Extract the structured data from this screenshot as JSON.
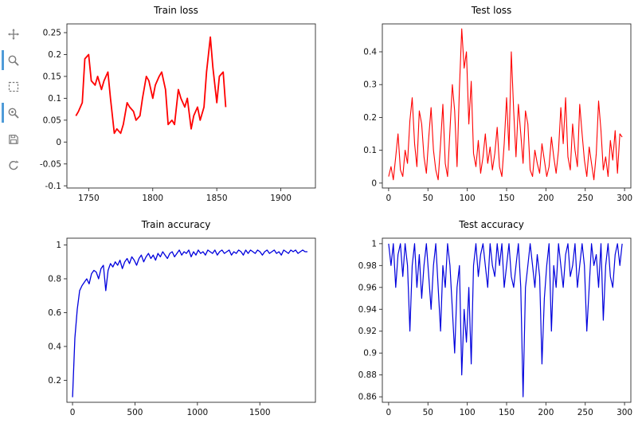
{
  "page": {
    "background": "#ffffff"
  },
  "toolbar": {
    "items": [
      {
        "name": "pan",
        "active": false
      },
      {
        "name": "zoom",
        "active": true
      },
      {
        "name": "box-zoom",
        "active": false
      },
      {
        "name": "wheel-zoom",
        "active": true
      },
      {
        "name": "save",
        "active": false
      },
      {
        "name": "reset",
        "active": false
      }
    ],
    "active_color": "#4f9bd8",
    "icon_color": "#555555"
  },
  "chart_data": [
    {
      "type": "line",
      "title": "Train loss",
      "color": "#ff0000",
      "line_width": 1.8,
      "xlim": [
        1733,
        1927
      ],
      "ylim": [
        -0.105,
        0.27
      ],
      "xticks": [
        1750,
        1800,
        1850,
        1900
      ],
      "yticks": [
        -0.1,
        -0.05,
        0,
        0.05,
        0.1,
        0.15,
        0.2,
        0.25
      ],
      "x": [
        1740,
        1742,
        1745,
        1747,
        1750,
        1752,
        1755,
        1757,
        1760,
        1762,
        1765,
        1767,
        1770,
        1772,
        1775,
        1777,
        1780,
        1782,
        1785,
        1787,
        1790,
        1792,
        1795,
        1797,
        1800,
        1802,
        1805,
        1807,
        1810,
        1812,
        1815,
        1817,
        1820,
        1822,
        1825,
        1827,
        1830,
        1832,
        1835,
        1837,
        1840,
        1842,
        1845,
        1847,
        1850,
        1852,
        1855,
        1857
      ],
      "y": [
        0.06,
        0.07,
        0.09,
        0.19,
        0.2,
        0.14,
        0.13,
        0.15,
        0.12,
        0.14,
        0.16,
        0.1,
        0.02,
        0.03,
        0.02,
        0.04,
        0.09,
        0.08,
        0.07,
        0.05,
        0.06,
        0.1,
        0.15,
        0.14,
        0.1,
        0.13,
        0.15,
        0.16,
        0.12,
        0.04,
        0.05,
        0.04,
        0.12,
        0.1,
        0.08,
        0.1,
        0.03,
        0.06,
        0.08,
        0.05,
        0.08,
        0.16,
        0.24,
        0.17,
        0.09,
        0.15,
        0.16,
        0.08
      ]
    },
    {
      "type": "line",
      "title": "Test loss",
      "color": "#ff0000",
      "line_width": 1.1,
      "xlim": [
        -8,
        308
      ],
      "ylim": [
        -0.015,
        0.485
      ],
      "xticks": [
        0,
        50,
        100,
        150,
        200,
        250,
        300
      ],
      "yticks": [
        0,
        0.1,
        0.2,
        0.3,
        0.4
      ],
      "x": {
        "start": 0,
        "step": 3
      },
      "y": [
        0.02,
        0.05,
        0.01,
        0.08,
        0.15,
        0.04,
        0.02,
        0.1,
        0.06,
        0.19,
        0.26,
        0.12,
        0.05,
        0.22,
        0.18,
        0.08,
        0.03,
        0.14,
        0.23,
        0.1,
        0.04,
        0.01,
        0.12,
        0.24,
        0.06,
        0.02,
        0.16,
        0.3,
        0.22,
        0.05,
        0.29,
        0.47,
        0.35,
        0.4,
        0.18,
        0.31,
        0.09,
        0.05,
        0.13,
        0.03,
        0.08,
        0.15,
        0.06,
        0.11,
        0.04,
        0.09,
        0.17,
        0.05,
        0.02,
        0.12,
        0.26,
        0.1,
        0.4,
        0.22,
        0.08,
        0.24,
        0.15,
        0.06,
        0.22,
        0.18,
        0.04,
        0.02,
        0.1,
        0.06,
        0.03,
        0.12,
        0.07,
        0.02,
        0.05,
        0.14,
        0.08,
        0.03,
        0.1,
        0.23,
        0.12,
        0.26,
        0.08,
        0.04,
        0.18,
        0.1,
        0.05,
        0.24,
        0.15,
        0.07,
        0.02,
        0.11,
        0.06,
        0.01,
        0.09,
        0.25,
        0.16,
        0.04,
        0.08,
        0.02,
        0.13,
        0.07,
        0.16,
        0.03,
        0.15,
        0.14
      ]
    },
    {
      "type": "line",
      "title": "Train accuracy",
      "color": "#0000dd",
      "line_width": 1.3,
      "xlim": [
        -45,
        1945
      ],
      "ylim": [
        0.07,
        1.04
      ],
      "xticks": [
        0,
        500,
        1000,
        1500
      ],
      "yticks": [
        0.2,
        0.4,
        0.6,
        0.8,
        1
      ],
      "x": {
        "start": 0,
        "step": 19
      },
      "y": [
        0.1,
        0.45,
        0.62,
        0.73,
        0.76,
        0.78,
        0.8,
        0.77,
        0.83,
        0.85,
        0.84,
        0.8,
        0.86,
        0.88,
        0.73,
        0.85,
        0.89,
        0.87,
        0.9,
        0.88,
        0.91,
        0.86,
        0.9,
        0.92,
        0.89,
        0.93,
        0.91,
        0.88,
        0.92,
        0.94,
        0.9,
        0.93,
        0.95,
        0.92,
        0.94,
        0.91,
        0.95,
        0.93,
        0.96,
        0.94,
        0.92,
        0.95,
        0.96,
        0.93,
        0.95,
        0.97,
        0.94,
        0.96,
        0.95,
        0.97,
        0.93,
        0.96,
        0.94,
        0.97,
        0.95,
        0.96,
        0.94,
        0.97,
        0.96,
        0.95,
        0.97,
        0.94,
        0.96,
        0.97,
        0.95,
        0.96,
        0.97,
        0.94,
        0.96,
        0.95,
        0.97,
        0.96,
        0.94,
        0.97,
        0.95,
        0.97,
        0.96,
        0.95,
        0.97,
        0.96,
        0.94,
        0.96,
        0.97,
        0.95,
        0.96,
        0.97,
        0.95,
        0.96,
        0.94,
        0.97,
        0.96,
        0.95,
        0.97,
        0.96,
        0.97,
        0.95,
        0.96,
        0.97,
        0.96,
        0.96
      ]
    },
    {
      "type": "line",
      "title": "Test accuracy",
      "color": "#0000dd",
      "line_width": 1.2,
      "xlim": [
        -8,
        308
      ],
      "ylim": [
        0.855,
        1.005
      ],
      "xticks": [
        0,
        50,
        100,
        150,
        200,
        250,
        300
      ],
      "yticks": [
        0.86,
        0.88,
        0.9,
        0.92,
        0.94,
        0.96,
        0.98,
        1
      ],
      "x": {
        "start": 0,
        "step": 3
      },
      "y": [
        1.0,
        0.98,
        1.0,
        0.96,
        0.99,
        1.0,
        0.97,
        1.0,
        0.98,
        0.92,
        0.98,
        1.0,
        0.96,
        0.99,
        0.95,
        0.98,
        1.0,
        0.97,
        0.94,
        0.98,
        1.0,
        0.96,
        0.92,
        0.98,
        0.96,
        1.0,
        0.98,
        0.94,
        0.9,
        0.96,
        0.98,
        0.88,
        0.94,
        0.91,
        0.96,
        0.89,
        0.98,
        1.0,
        0.97,
        0.99,
        1.0,
        0.98,
        0.96,
        1.0,
        0.98,
        0.97,
        1.0,
        0.98,
        1.0,
        0.96,
        0.98,
        1.0,
        0.97,
        0.96,
        0.98,
        1.0,
        0.96,
        0.86,
        0.96,
        0.98,
        1.0,
        0.98,
        0.96,
        0.99,
        0.97,
        0.89,
        0.95,
        0.98,
        1.0,
        0.92,
        0.98,
        0.96,
        1.0,
        0.98,
        0.96,
        0.99,
        1.0,
        0.97,
        0.98,
        1.0,
        0.96,
        0.98,
        1.0,
        0.98,
        0.92,
        0.96,
        1.0,
        0.98,
        0.99,
        0.96,
        1.0,
        0.93,
        0.98,
        1.0,
        0.97,
        0.96,
        0.99,
        1.0,
        0.98,
        1.0
      ]
    }
  ]
}
